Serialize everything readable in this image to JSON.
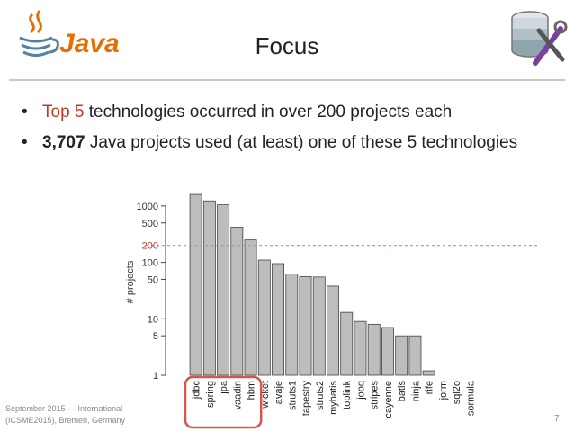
{
  "slide": {
    "title": "Focus",
    "bullets": [
      {
        "prefix": "",
        "highlight": "Top 5",
        "rest": " technologies occurred in over 200 projects each"
      },
      {
        "prefix": "",
        "highlight": "3,707",
        "rest": " Java projects used (at least) one of these 5 technologies"
      }
    ],
    "footer_line1": "September 2015 — International",
    "footer_line2": "(ICSME2015), Bremen, Germany",
    "page_number": "7",
    "logo_text": "Java",
    "icons": [
      "java-logo-icon",
      "database-tools-icon"
    ],
    "colors": {
      "accent": "#c0392b",
      "bar_fill": "#bdbdbd",
      "bar_stroke": "#444444",
      "reference_line": "#e08080",
      "highlight_box": "#d9534f"
    }
  },
  "chart_data": {
    "type": "bar",
    "ylabel": "# projects",
    "y_scale": "log",
    "yticks": [
      1,
      5,
      10,
      50,
      100,
      500,
      1000
    ],
    "ylim": [
      1,
      2000
    ],
    "reference_line": {
      "value": 200,
      "label": "200"
    },
    "highlighted_categories": [
      "jdbc",
      "spring",
      "jpa",
      "vaadin",
      "hbm"
    ],
    "categories": [
      "jdbc",
      "spring",
      "jpa",
      "vaadin",
      "hbm",
      "wicket",
      "avaje",
      "struts1",
      "tapestry",
      "struts2",
      "mybatis",
      "toplink",
      "jooq",
      "stripes",
      "cayenne",
      "batis",
      "ninja",
      "rife",
      "jorm",
      "sql2o",
      "sormula"
    ],
    "values": [
      1600,
      1230,
      1050,
      420,
      250,
      110,
      95,
      62,
      56,
      55,
      38,
      13,
      9,
      8,
      7,
      5,
      5,
      1.2,
      1,
      1,
      1
    ]
  }
}
